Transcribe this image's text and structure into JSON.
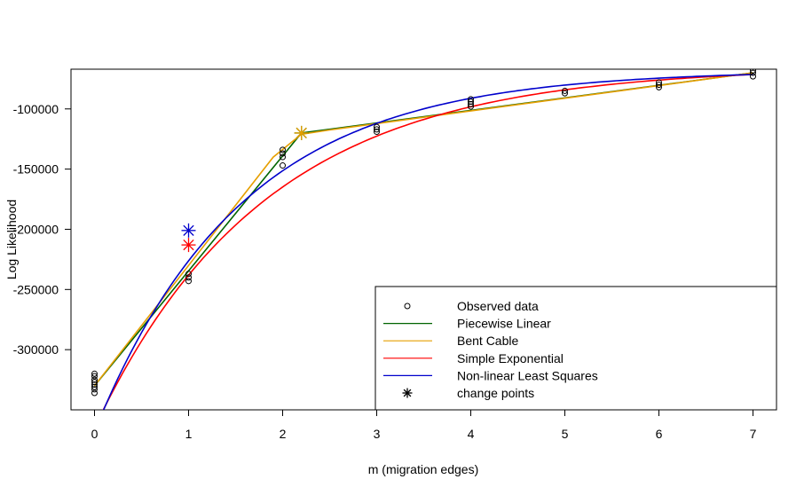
{
  "chart_data": {
    "type": "scatter",
    "title": "",
    "xlabel": "m (migration edges)",
    "ylabel": "Log Likelihood",
    "xlim": [
      -0.25,
      7.25
    ],
    "ylim": [
      -350000,
      -67000
    ],
    "x_ticks": [
      0,
      1,
      2,
      3,
      4,
      5,
      6,
      7
    ],
    "x_tick_labels": [
      "0",
      "1",
      "2",
      "3",
      "4",
      "5",
      "6",
      "7"
    ],
    "y_ticks": [
      -300000,
      -250000,
      -200000,
      -150000,
      -100000
    ],
    "y_tick_labels": [
      "-300000",
      "-250000",
      "-200000",
      "-150000",
      "-100000"
    ],
    "grid": false,
    "legend_position": "bottom-right",
    "observed": {
      "name": "Observed data",
      "x": [
        0,
        0,
        0,
        0,
        0,
        0,
        0,
        0,
        1,
        1,
        1,
        2,
        2,
        2,
        2,
        3,
        3,
        3,
        4,
        4,
        4,
        4,
        5,
        5,
        6,
        6,
        6,
        7,
        7,
        7
      ],
      "y": [
        -320000,
        -322000,
        -325000,
        -327000,
        -329000,
        -331000,
        -333000,
        -336000,
        -237000,
        -240000,
        -243000,
        -134000,
        -137000,
        -140000,
        -147000,
        -115000,
        -117000,
        -119000,
        -92000,
        -94000,
        -96000,
        -98000,
        -85000,
        -87000,
        -78000,
        -80000,
        -82000,
        -68000,
        -70000,
        -73000
      ]
    },
    "series": [
      {
        "name": "Piecewise Linear",
        "color": "#006400",
        "x": [
          0,
          2.2,
          7
        ],
        "y": [
          -330000,
          -120000,
          -70000
        ]
      },
      {
        "name": "Bent Cable",
        "color": "#E69F00",
        "x": [
          0,
          1.9,
          2.2,
          2.5,
          7
        ],
        "y": [
          -330000,
          -140000,
          -121000,
          -117500,
          -70000
        ]
      },
      {
        "name": "Simple Exponential",
        "color": "#FF0000",
        "curve": {
          "a": -65000,
          "b": -300000,
          "k": 0.55
        }
      },
      {
        "name": "Non-linear Least Squares",
        "color": "#0000CC",
        "curve": {
          "a": -68000,
          "b": -300000,
          "k": 0.64
        }
      }
    ],
    "change_points": {
      "name": "change points",
      "points": [
        {
          "x": 1,
          "y": -201000,
          "color": "#0000CC"
        },
        {
          "x": 1,
          "y": -213000,
          "color": "#FF0000"
        },
        {
          "x": 2.2,
          "y": -120000,
          "color": "#006400"
        },
        {
          "x": 2.2,
          "y": -120000,
          "color": "#E69F00"
        }
      ]
    },
    "legend": [
      {
        "label": "Observed data",
        "kind": "circle",
        "color": "#000000"
      },
      {
        "label": "Piecewise Linear",
        "kind": "line",
        "color": "#006400"
      },
      {
        "label": "Bent Cable",
        "kind": "line",
        "color": "#E69F00"
      },
      {
        "label": "Simple Exponential",
        "kind": "line",
        "color": "#FF0000"
      },
      {
        "label": "Non-linear Least Squares",
        "kind": "line",
        "color": "#0000CC"
      },
      {
        "label": "change points",
        "kind": "star",
        "color": "#000000"
      }
    ]
  }
}
